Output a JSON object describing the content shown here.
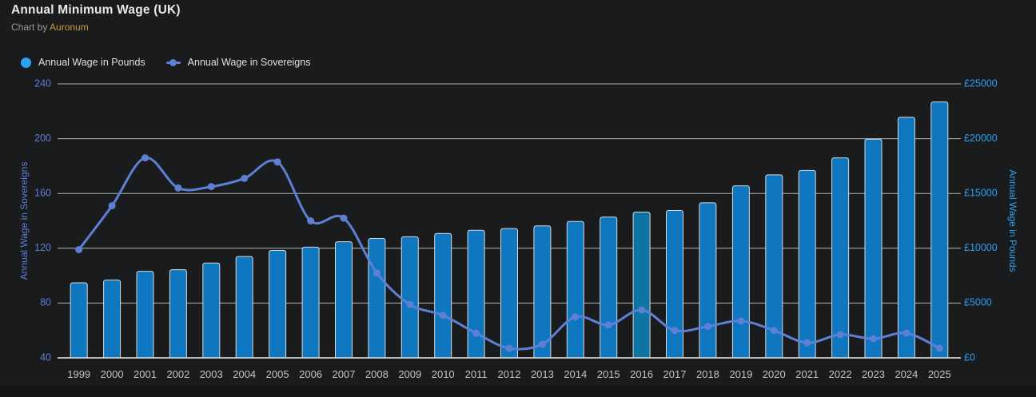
{
  "header": {
    "title": "Annual Minimum Wage (UK)",
    "subtitle_prefix": "Chart by ",
    "subtitle_brand": "Auronum"
  },
  "legend": {
    "items": [
      {
        "label": "Annual Wage in Pounds",
        "marker": "circle-icon",
        "color": "#2ba2f2"
      },
      {
        "label": "Annual Wage in Sovereigns",
        "marker": "line-dot-icon",
        "color": "#5d80d5"
      }
    ]
  },
  "colors": {
    "background": "#1a1b1d",
    "bar_fill": "#0f76c0",
    "bar_highlight_fill": "#0e74a4",
    "bar_border": "#d9d9d9",
    "line": "#5d80d5",
    "grid": "#c7c7c7",
    "axis_line": "#d2d2d2",
    "left_tick_text": "#5d80d5",
    "right_tick_text": "#2ba0f1",
    "x_tick_text": "#c7c4bf",
    "title_text": "#e9e9e9",
    "brand_text": "#cc9940"
  },
  "chart_data": {
    "type": "bar",
    "subtype": "bar+line combo, dark theme, legend top-left, horizontal gridlines on",
    "categories": [
      "1999",
      "2000",
      "2001",
      "2002",
      "2003",
      "2004",
      "2005",
      "2006",
      "2007",
      "2008",
      "2009",
      "2010",
      "2011",
      "2012",
      "2013",
      "2014",
      "2015",
      "2016",
      "2017",
      "2018",
      "2019",
      "2020",
      "2021",
      "2022",
      "2023",
      "2024",
      "2025"
    ],
    "series": [
      {
        "name": "Annual Wage in Pounds",
        "type": "bar",
        "axis": "right",
        "color": "#0f76c0",
        "highlight_index": 17,
        "highlight_color": "#0e74a4",
        "values": [
          6850,
          7100,
          7900,
          8050,
          8650,
          9250,
          9800,
          10100,
          10600,
          10900,
          11050,
          11350,
          11650,
          11800,
          12050,
          12450,
          12850,
          13300,
          13450,
          14150,
          15700,
          16700,
          17100,
          18250,
          19950,
          21950,
          23350
        ]
      },
      {
        "name": "Annual Wage in Sovereigns",
        "type": "line",
        "axis": "left",
        "color": "#5d80d5",
        "values": [
          119,
          151,
          186,
          164,
          165,
          171,
          183,
          140,
          142,
          102,
          79,
          71,
          58,
          47,
          50,
          70,
          64,
          75,
          60,
          63,
          67,
          60,
          51,
          57,
          54,
          58,
          47
        ]
      }
    ],
    "left_axis": {
      "label": "Annual Wage in Sovereigns",
      "min": 40,
      "max": 240,
      "tick_values": [
        40,
        80,
        120,
        160,
        200,
        240
      ],
      "tick_labels": [
        "40",
        "80",
        "120",
        "160",
        "200",
        "240"
      ]
    },
    "right_axis": {
      "label": "Annual Wage in Pounds",
      "min": 0,
      "max": 25000,
      "tick_values": [
        0,
        5000,
        10000,
        15000,
        20000,
        25000
      ],
      "tick_labels": [
        "£0",
        "£5000",
        "£10000",
        "£15000",
        "£20000",
        "£25000"
      ]
    },
    "title": "Annual Minimum Wage (UK)",
    "xlabel": "",
    "ylabel_left": "Annual Wage in Sovereigns",
    "ylabel_right": "Annual Wage in Pounds"
  }
}
